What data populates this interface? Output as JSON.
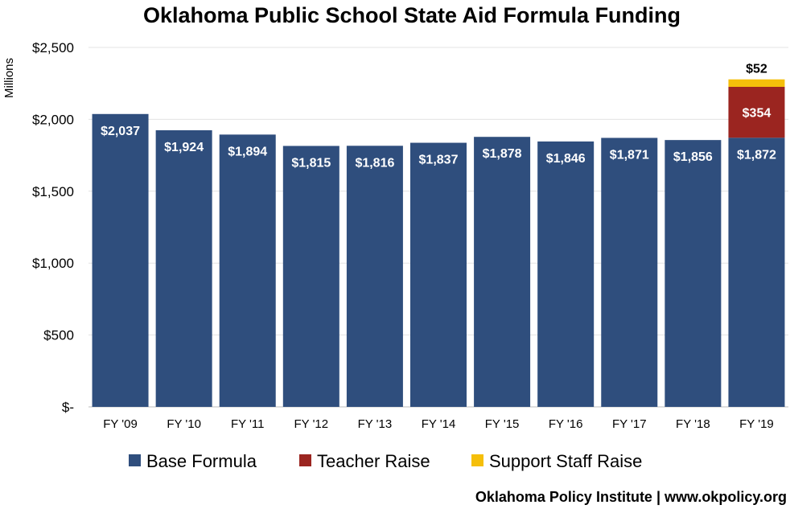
{
  "chart_data": {
    "type": "bar",
    "stacked": true,
    "title": "Oklahoma Public School State Aid Formula Funding",
    "ylabel": "Millions",
    "xlabel": "",
    "ylim": [
      0,
      2500
    ],
    "yticks": [
      0,
      500,
      1000,
      1500,
      2000,
      2500
    ],
    "ytick_labels": [
      "$-",
      "$500",
      "$1,000",
      "$1,500",
      "$2,000",
      "$2,500"
    ],
    "grid": true,
    "legend_position": "bottom",
    "categories": [
      "FY '09",
      "FY '10",
      "FY '11",
      "FY '12",
      "FY '13",
      "FY '14",
      "FY '15",
      "FY '16",
      "FY '17",
      "FY '18",
      "FY '19"
    ],
    "series": [
      {
        "name": "Base Formula",
        "color": "#2f4e7d",
        "values": [
          2037,
          1924,
          1894,
          1815,
          1816,
          1837,
          1878,
          1846,
          1871,
          1856,
          1872
        ],
        "labels": [
          "$2,037",
          "$1,924",
          "$1,894",
          "$1,815",
          "$1,816",
          "$1,837",
          "$1,878",
          "$1,846",
          "$1,871",
          "$1,856",
          "$1,872"
        ]
      },
      {
        "name": "Teacher Raise",
        "color": "#9b2520",
        "values": [
          0,
          0,
          0,
          0,
          0,
          0,
          0,
          0,
          0,
          0,
          354
        ],
        "labels": [
          "",
          "",
          "",
          "",
          "",
          "",
          "",
          "",
          "",
          "",
          "$354"
        ]
      },
      {
        "name": "Support Staff Raise",
        "color": "#f5bf0a",
        "values": [
          0,
          0,
          0,
          0,
          0,
          0,
          0,
          0,
          0,
          0,
          52
        ],
        "labels": [
          "",
          "",
          "",
          "",
          "",
          "",
          "",
          "",
          "",
          "",
          "$52"
        ]
      }
    ],
    "source": "Oklahoma Policy Institute | www.okpolicy.org"
  }
}
